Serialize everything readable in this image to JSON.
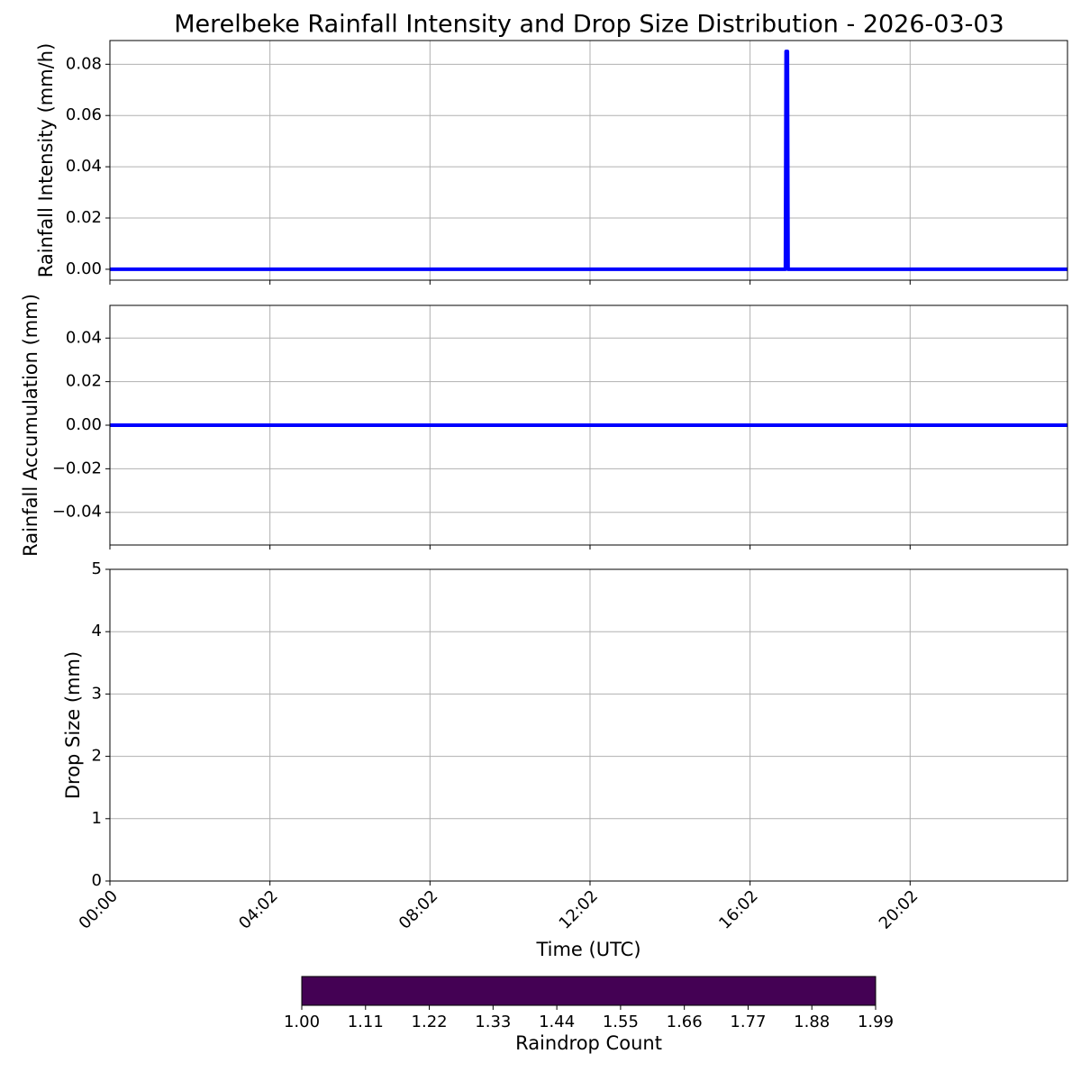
{
  "chart_data": [
    {
      "type": "line",
      "title": "Merelbeke Rainfall Intensity and Drop Size Distribution - 2026-03-03",
      "ylabel": "Rainfall Intensity (mm/h)",
      "x": [
        0,
        1013,
        1014,
        1016,
        1017,
        1436
      ],
      "values": [
        0,
        0,
        0.085,
        0.085,
        0,
        0
      ],
      "color": "#0000ff",
      "xlim": [
        0,
        1436
      ],
      "xticks": [
        {
          "value": 0,
          "label": "00:00"
        },
        {
          "value": 240,
          "label": "04:02"
        },
        {
          "value": 480,
          "label": "08:02"
        },
        {
          "value": 720,
          "label": "12:02"
        },
        {
          "value": 960,
          "label": "16:02"
        },
        {
          "value": 1200,
          "label": "20:02"
        }
      ],
      "ylim": [
        -0.00425,
        0.08925
      ],
      "yticks": [
        {
          "value": 0,
          "label": "0.00"
        },
        {
          "value": 0.02,
          "label": "0.02"
        },
        {
          "value": 0.04,
          "label": "0.04"
        },
        {
          "value": 0.06,
          "label": "0.06"
        },
        {
          "value": 0.08,
          "label": "0.08"
        }
      ],
      "grid": true
    },
    {
      "type": "line",
      "ylabel": "Rainfall Accumulation (mm)",
      "x": [
        0,
        1436
      ],
      "values": [
        0,
        0
      ],
      "color": "#0000ff",
      "xlim": [
        0,
        1436
      ],
      "xticks": [
        {
          "value": 0,
          "label": "00:00"
        },
        {
          "value": 240,
          "label": "04:02"
        },
        {
          "value": 480,
          "label": "08:02"
        },
        {
          "value": 720,
          "label": "12:02"
        },
        {
          "value": 960,
          "label": "16:02"
        },
        {
          "value": 1200,
          "label": "20:02"
        }
      ],
      "ylim": [
        -0.055,
        0.055
      ],
      "yticks": [
        {
          "value": -0.04,
          "label": "−0.04"
        },
        {
          "value": -0.02,
          "label": "−0.02"
        },
        {
          "value": 0,
          "label": "0.00"
        },
        {
          "value": 0.02,
          "label": "0.02"
        },
        {
          "value": 0.04,
          "label": "0.04"
        }
      ],
      "grid": true
    },
    {
      "type": "heatmap",
      "ylabel": "Drop Size (mm)",
      "xlabel": "Time (UTC)",
      "xlim": [
        0,
        1436
      ],
      "xticks": [
        {
          "value": 0,
          "label": "00:00"
        },
        {
          "value": 240,
          "label": "04:02"
        },
        {
          "value": 480,
          "label": "08:02"
        },
        {
          "value": 720,
          "label": "12:02"
        },
        {
          "value": 960,
          "label": "16:02"
        },
        {
          "value": 1200,
          "label": "20:02"
        }
      ],
      "ylim": [
        0,
        5
      ],
      "yticks": [
        0,
        1,
        2,
        3,
        4,
        5
      ],
      "grid": true,
      "colorbar": {
        "label": "Raindrop Count",
        "color": "#440154",
        "clim": [
          1,
          1.99
        ],
        "ticks": [
          {
            "value": 1,
            "label": "1.00"
          },
          {
            "value": 1.11,
            "label": "1.11"
          },
          {
            "value": 1.22,
            "label": "1.22"
          },
          {
            "value": 1.33,
            "label": "1.33"
          },
          {
            "value": 1.44,
            "label": "1.44"
          },
          {
            "value": 1.55,
            "label": "1.55"
          },
          {
            "value": 1.66,
            "label": "1.66"
          },
          {
            "value": 1.77,
            "label": "1.77"
          },
          {
            "value": 1.88,
            "label": "1.88"
          },
          {
            "value": 1.99,
            "label": "1.99"
          }
        ]
      }
    }
  ]
}
